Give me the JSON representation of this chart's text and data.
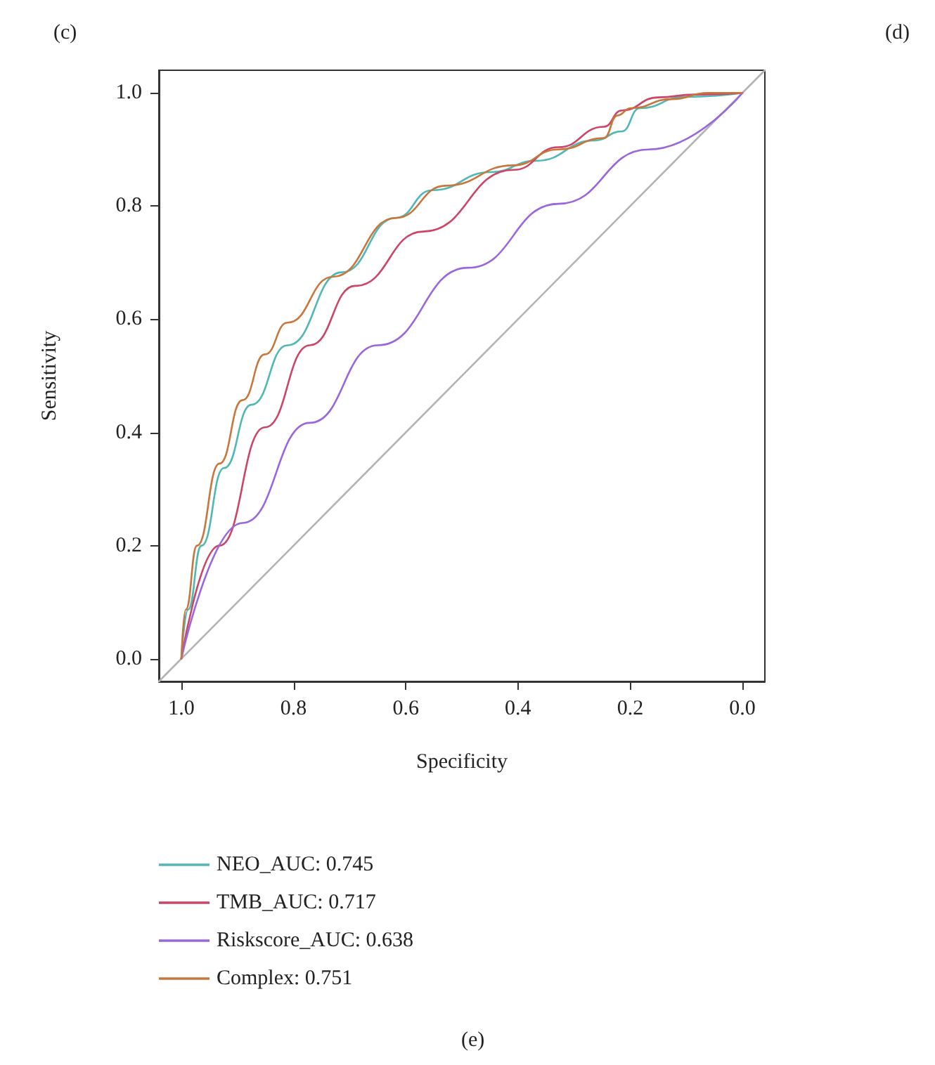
{
  "chart_data": {
    "type": "line",
    "xlabel": "Specificity",
    "ylabel": "Sensitivity",
    "annotations": [
      "(c)",
      "(d)",
      "(e)"
    ],
    "xlim": [
      1.04,
      -0.04
    ],
    "ylim": [
      -0.04,
      1.04
    ],
    "xticks": [
      {
        "value": 1,
        "label": "1.0"
      },
      0.8,
      0.6,
      0.4,
      0.2,
      {
        "value": 0,
        "label": "0.0"
      }
    ],
    "yticks": [
      {
        "value": 0,
        "label": "0.0"
      },
      0.2,
      0.4,
      0.6,
      0.8,
      {
        "value": 1,
        "label": "1.0"
      }
    ],
    "grid": false,
    "legend": "bottom",
    "marker": "none",
    "line_style": "solid",
    "series": [
      {
        "name": "NEO_AUC: 0.745",
        "color": "#4fb8b4",
        "x": [
          1,
          0.988,
          0.964,
          0.924,
          0.875,
          0.811,
          0.714,
          0.618,
          0.553,
          0.448,
          0.368,
          0.263,
          0.215,
          0.183,
          0.102,
          0
        ],
        "values": [
          0,
          0.087,
          0.2,
          0.337,
          0.449,
          0.554,
          0.683,
          0.779,
          0.828,
          0.86,
          0.88,
          0.916,
          0.932,
          0.973,
          0.993,
          1
        ]
      },
      {
        "name": "TMB_AUC: 0.717",
        "color": "#cc4466",
        "x": [
          1,
          0.932,
          0.851,
          0.771,
          0.69,
          0.569,
          0.408,
          0.328,
          0.247,
          0.215,
          0.15,
          0.086,
          0
        ],
        "values": [
          0,
          0.2,
          0.409,
          0.554,
          0.659,
          0.755,
          0.864,
          0.904,
          0.94,
          0.969,
          0.992,
          0.997,
          1
        ]
      },
      {
        "name": "Riskscore_AUC: 0.638",
        "color": "#9966dd",
        "x": [
          1,
          0.891,
          0.771,
          0.65,
          0.489,
          0.328,
          0.167,
          0
        ],
        "values": [
          0,
          0.24,
          0.417,
          0.554,
          0.691,
          0.804,
          0.9,
          1
        ]
      },
      {
        "name": "Complex: 0.751",
        "color": "#c8773c",
        "x": [
          1,
          0.992,
          0.972,
          0.932,
          0.891,
          0.851,
          0.811,
          0.73,
          0.618,
          0.529,
          0.408,
          0.328,
          0.247,
          0.223,
          0.199,
          0.126,
          0.062,
          0
        ],
        "values": [
          0,
          0.087,
          0.2,
          0.345,
          0.457,
          0.538,
          0.594,
          0.675,
          0.779,
          0.836,
          0.872,
          0.9,
          0.92,
          0.96,
          0.973,
          0.989,
          1,
          1
        ]
      },
      {
        "color": "#b3b3b3",
        "x": [
          1.04,
          -0.04
        ],
        "values": [
          -0.04,
          1.04
        ]
      }
    ]
  }
}
